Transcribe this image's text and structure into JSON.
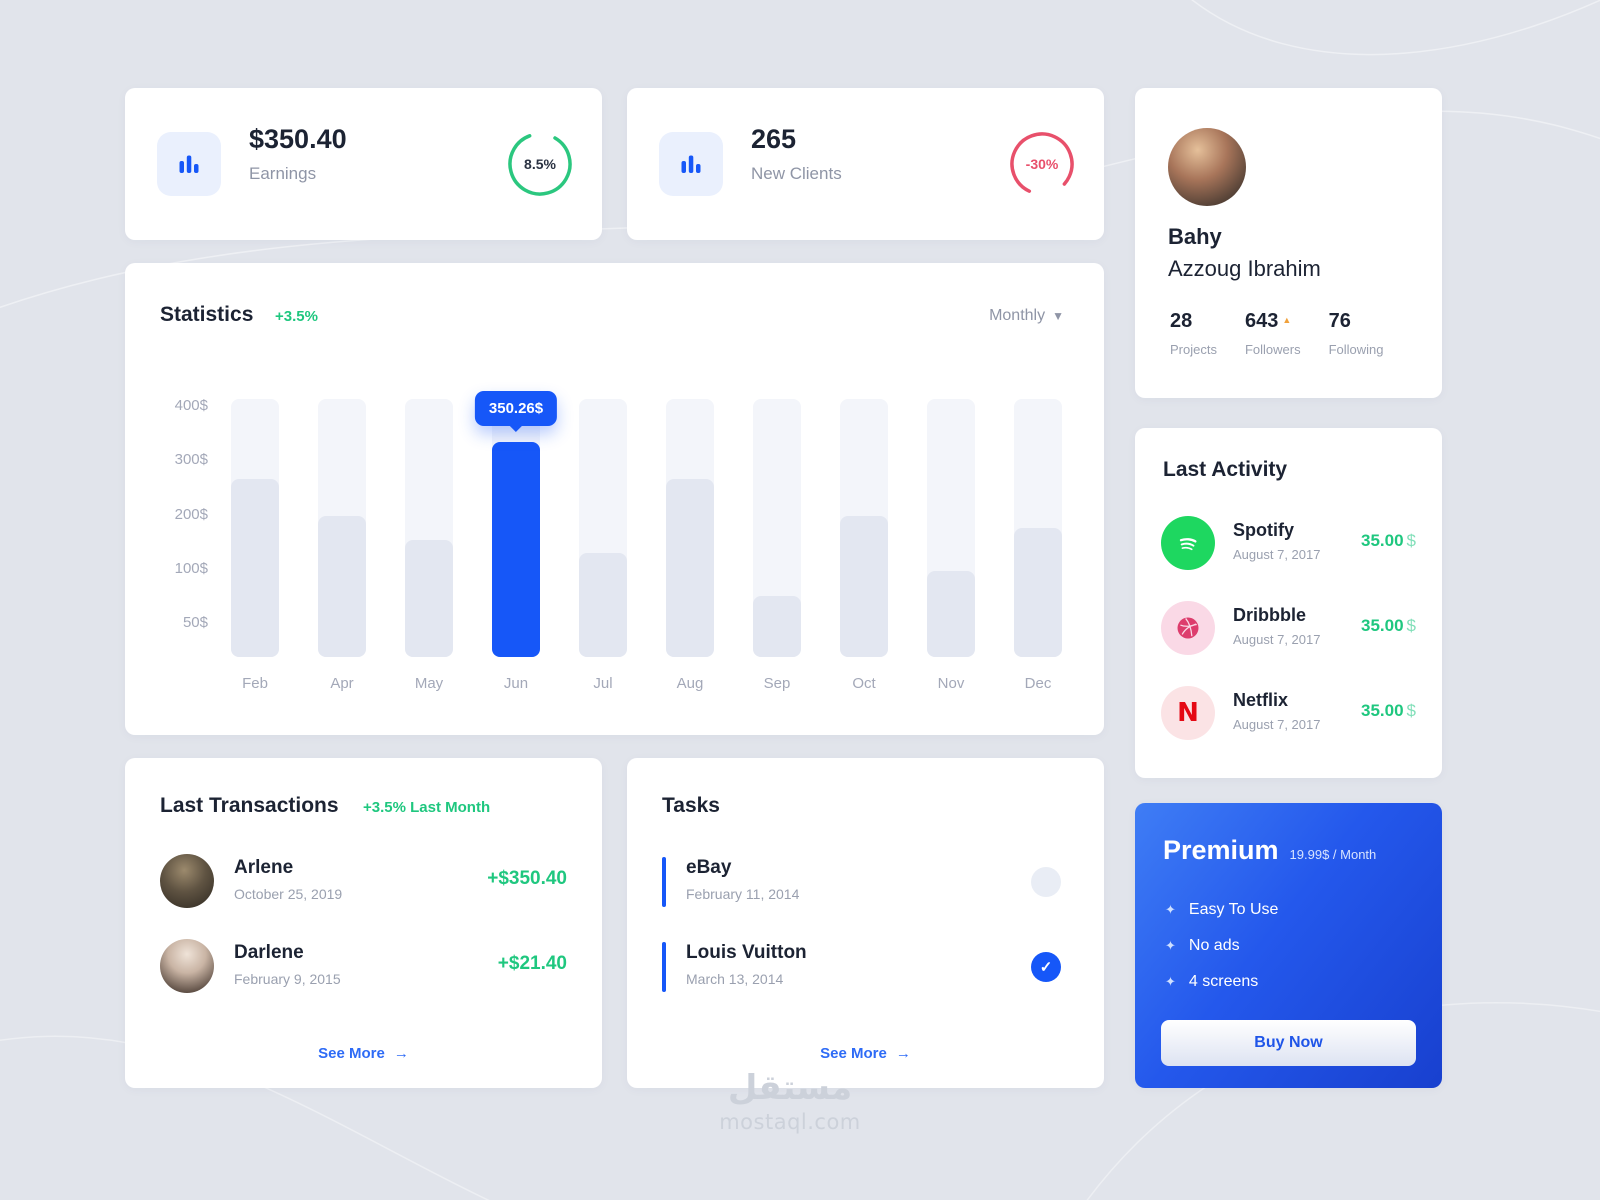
{
  "colors": {
    "accent": "#1657f8",
    "green": "#1fc77f",
    "red": "#e8506b"
  },
  "earnings": {
    "value": "$350.40",
    "label": "Earnings",
    "percent": "8.5%"
  },
  "new_clients": {
    "value": "265",
    "label": "New Clients",
    "percent": "-30%"
  },
  "profile": {
    "first_name": "Bahy",
    "last_name": "Azzoug Ibrahim",
    "stats": [
      {
        "value": "28",
        "label": "Projects"
      },
      {
        "value": "643",
        "label": "Followers"
      },
      {
        "value": "76",
        "label": "Following"
      }
    ]
  },
  "chart_data": {
    "type": "bar",
    "title": "Statistics",
    "delta": "+3.5%",
    "range_selector": "Monthly",
    "categories": [
      "Feb",
      "Apr",
      "May",
      "Jun",
      "Jul",
      "Aug",
      "Sep",
      "Oct",
      "Nov",
      "Dec"
    ],
    "values": [
      290,
      230,
      190,
      350.26,
      170,
      290,
      100,
      230,
      140,
      210
    ],
    "yticks": [
      "400$",
      "300$",
      "200$",
      "100$",
      "50$"
    ],
    "ymax": 420,
    "highlight_index": 3,
    "tooltip": "350.26$",
    "legend": "none",
    "grid": "off"
  },
  "transactions": {
    "title": "Last Transactions",
    "delta": "+3.5% Last Month",
    "items": [
      {
        "name": "Arlene",
        "date": "October 25, 2019",
        "amount": "+$350.40"
      },
      {
        "name": "Darlene",
        "date": "February 9, 2015",
        "amount": "+$21.40"
      }
    ],
    "see_more": "See More"
  },
  "tasks": {
    "title": "Tasks",
    "items": [
      {
        "name": "eBay",
        "date": "February 11, 2014",
        "done": false
      },
      {
        "name": "Louis Vuitton",
        "date": "March 13, 2014",
        "done": true
      }
    ],
    "see_more": "See More"
  },
  "activity": {
    "title": "Last Activity",
    "items": [
      {
        "name": "Spotify",
        "date": "August 7, 2017",
        "amount": "35.00",
        "currency": "$"
      },
      {
        "name": "Dribbble",
        "date": "August 7, 2017",
        "amount": "35.00",
        "currency": "$"
      },
      {
        "name": "Netflix",
        "date": "August 7, 2017",
        "amount": "35.00",
        "currency": "$"
      }
    ]
  },
  "premium": {
    "title": "Premium",
    "price": "19.99$ / Month",
    "features": [
      "Easy To Use",
      "No ads",
      "4 screens"
    ],
    "button": "Buy Now"
  },
  "watermark": {
    "arabic": "مستقل",
    "domain": "mostaql.com"
  }
}
